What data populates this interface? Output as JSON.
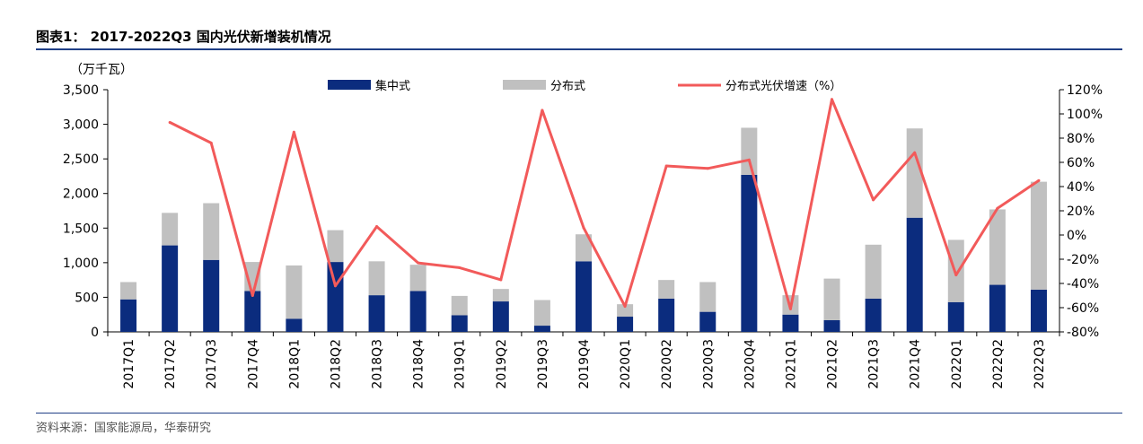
{
  "title": "图表1： 2017-2022Q3 国内光伏新增装机情况",
  "source": "资料来源：国家能源局，华泰研究",
  "chart_data": {
    "type": "bar",
    "stacked": true,
    "unit_label": "（万千瓦）",
    "categories": [
      "2017Q1",
      "2017Q2",
      "2017Q3",
      "2017Q4",
      "2018Q1",
      "2018Q2",
      "2018Q3",
      "2018Q4",
      "2019Q1",
      "2019Q2",
      "2019Q3",
      "2019Q4",
      "2020Q1",
      "2020Q2",
      "2020Q3",
      "2020Q4",
      "2021Q1",
      "2021Q2",
      "2021Q3",
      "2021Q4",
      "2022Q1",
      "2022Q2",
      "2022Q3"
    ],
    "series": [
      {
        "name": "集中式",
        "type": "bar",
        "axis": "left",
        "color": "#0b2c7e",
        "values": [
          470,
          1250,
          1040,
          590,
          190,
          1010,
          530,
          590,
          240,
          440,
          90,
          1020,
          220,
          480,
          290,
          2270,
          250,
          170,
          480,
          1650,
          430,
          680,
          610
        ]
      },
      {
        "name": "分布式",
        "type": "bar",
        "axis": "left",
        "color": "#c0c0c0",
        "values": [
          250,
          470,
          820,
          420,
          770,
          460,
          490,
          380,
          280,
          180,
          370,
          390,
          180,
          270,
          430,
          680,
          280,
          600,
          780,
          1290,
          900,
          1090,
          1560
        ]
      },
      {
        "name": "分布式光伏增速（%）",
        "type": "line",
        "axis": "right",
        "color": "#f25a5a",
        "values": [
          null,
          93,
          76,
          -50,
          85,
          -42,
          7,
          -23,
          -27,
          -37,
          103,
          6,
          -59,
          57,
          55,
          62,
          -61,
          112,
          29,
          68,
          -33,
          22,
          45
        ]
      }
    ],
    "left_axis": {
      "min": 0,
      "max": 3500,
      "ticks": [
        0,
        500,
        1000,
        1500,
        2000,
        2500,
        3000,
        3500
      ],
      "tick_labels": [
        "0",
        "500",
        "1,000",
        "1,500",
        "2,000",
        "2,500",
        "3,000",
        "3,500"
      ]
    },
    "right_axis": {
      "min": -80,
      "max": 120,
      "ticks": [
        -80,
        -60,
        -40,
        -20,
        0,
        20,
        40,
        60,
        80,
        100,
        120
      ],
      "tick_labels": [
        "-80%",
        "-60%",
        "-40%",
        "-20%",
        "0%",
        "20%",
        "40%",
        "60%",
        "80%",
        "100%",
        "120%"
      ]
    },
    "legend_position": "top",
    "grid": false
  }
}
